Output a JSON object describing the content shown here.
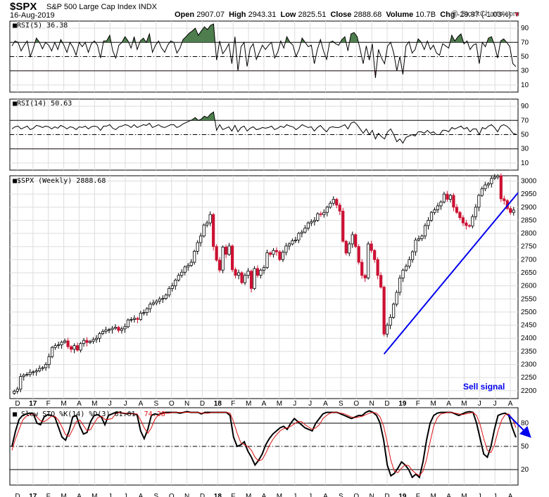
{
  "header": {
    "ticker": "$SPX",
    "company": "S&P 500 Large Cap Index",
    "exchange": "INDX",
    "date": "16-Aug-2019",
    "open_label": "Open",
    "open": "2907.07",
    "high_label": "High",
    "high": "2943.31",
    "low_label": "Low",
    "low": "2825.51",
    "close_label": "Close",
    "close": "2888.68",
    "volume_label": "Volume",
    "volume": "10.7B",
    "chg_label": "Chg",
    "chg": "-29.97 (-1.03%)",
    "brand": "@ StockCharts.com"
  },
  "colors": {
    "up": "#000000",
    "down": "#cc1133",
    "trendline": "#0000ee",
    "overbought_fill": "#4e7d4e",
    "oversold_fill": "#a04040",
    "stoch_d": "#dd1111"
  },
  "annotation": {
    "text": "Sell signal"
  },
  "x_axis": {
    "labels": [
      "D",
      "17",
      "F",
      "M",
      "A",
      "M",
      "J",
      "J",
      "A",
      "S",
      "O",
      "N",
      "D",
      "18",
      "F",
      "M",
      "A",
      "M",
      "J",
      "J",
      "A",
      "S",
      "O",
      "N",
      "D",
      "19",
      "F",
      "M",
      "A",
      "M",
      "J",
      "J",
      "A"
    ]
  },
  "chart_data": [
    {
      "type": "line",
      "name": "RSI(5)",
      "label": "RSI(5)",
      "value": "36.38",
      "ylim": [
        0,
        100
      ],
      "y_ticks": [
        "90",
        "70",
        "50",
        "30",
        "10"
      ],
      "reference_lines": [
        70,
        50,
        30
      ],
      "values": [
        65,
        72,
        70,
        58,
        66,
        72,
        50,
        62,
        76,
        70,
        61,
        70,
        66,
        58,
        70,
        60,
        74,
        66,
        56,
        70,
        63,
        52,
        70,
        64,
        70,
        56,
        68,
        72,
        66,
        48,
        72,
        72,
        80,
        58,
        48,
        66,
        70,
        78,
        72,
        62,
        78,
        60,
        72,
        76,
        70,
        82,
        56,
        66,
        72,
        62,
        56,
        66,
        72,
        70,
        55,
        62,
        74,
        78,
        83,
        86,
        90,
        80,
        86,
        92,
        88,
        94,
        96,
        45,
        72,
        54,
        60,
        68,
        40,
        78,
        30,
        64,
        70,
        36,
        62,
        68,
        46,
        56,
        66,
        60,
        66,
        70,
        48,
        56,
        72,
        62,
        78,
        70,
        66,
        50,
        60,
        76,
        70,
        64,
        66,
        40,
        60,
        74,
        58,
        46,
        70,
        72,
        68,
        66,
        74,
        78,
        58,
        82,
        84,
        78,
        60,
        40,
        65,
        45,
        68,
        20,
        60,
        48,
        40,
        65,
        70,
        55,
        30,
        50,
        25,
        65,
        71,
        55,
        60,
        75,
        70,
        60,
        72,
        60,
        66,
        55,
        52,
        68,
        65,
        62,
        80,
        72,
        78,
        82,
        68,
        72,
        60,
        66,
        68,
        40,
        70,
        64,
        76,
        78,
        66,
        48,
        72,
        75,
        70,
        64,
        40,
        36
      ]
    },
    {
      "type": "line",
      "name": "RSI(14)",
      "label": "RSI(14)",
      "value": "50.63",
      "ylim": [
        0,
        100
      ],
      "y_ticks": [
        "90",
        "70",
        "50",
        "30",
        "10"
      ],
      "reference_lines": [
        70,
        50,
        30
      ],
      "values": [
        58,
        61,
        62,
        58,
        60,
        62,
        57,
        59,
        63,
        62,
        60,
        62,
        61,
        58,
        61,
        59,
        63,
        61,
        58,
        61,
        60,
        57,
        61,
        60,
        62,
        58,
        61,
        62,
        61,
        56,
        62,
        62,
        64,
        59,
        57,
        61,
        62,
        64,
        63,
        60,
        64,
        60,
        62,
        64,
        63,
        66,
        60,
        62,
        64,
        61,
        60,
        62,
        64,
        64,
        60,
        62,
        65,
        67,
        69,
        71,
        74,
        70,
        72,
        76,
        74,
        79,
        82,
        56,
        64,
        57,
        59,
        61,
        55,
        63,
        54,
        60,
        62,
        55,
        59,
        61,
        57,
        58,
        60,
        59,
        60,
        62,
        57,
        59,
        62,
        60,
        64,
        62,
        61,
        57,
        60,
        64,
        62,
        60,
        61,
        55,
        60,
        63,
        58,
        54,
        60,
        61,
        60,
        60,
        62,
        64,
        58,
        66,
        68,
        64,
        58,
        52,
        58,
        50,
        56,
        44,
        52,
        47,
        44,
        54,
        58,
        50,
        40,
        44,
        38,
        46,
        48,
        50,
        48,
        54,
        54,
        52,
        56,
        52,
        54,
        50,
        50,
        56,
        56,
        54,
        60,
        58,
        60,
        62,
        58,
        60,
        54,
        58,
        58,
        50,
        60,
        58,
        62,
        64,
        60,
        54,
        62,
        64,
        62,
        58,
        52,
        50.63
      ]
    },
    {
      "type": "candlestick",
      "name": "$SPX (Weekly)",
      "label": "$SPX (Weekly)",
      "value": "2888.68",
      "ylim": [
        2170,
        3020
      ],
      "y_ticks": [
        "3000",
        "2950",
        "2900",
        "2850",
        "2800",
        "2750",
        "2700",
        "2650",
        "2600",
        "2550",
        "2500",
        "2450",
        "2400",
        "2350",
        "2300",
        "2250",
        "2200"
      ],
      "values": [
        2198,
        2206,
        2254,
        2260,
        2262,
        2270,
        2272,
        2276,
        2285,
        2288,
        2300,
        2330,
        2365,
        2372,
        2375,
        2385,
        2390,
        2368,
        2358,
        2372,
        2355,
        2380,
        2392,
        2384,
        2388,
        2395,
        2400,
        2418,
        2426,
        2432,
        2433,
        2438,
        2442,
        2430,
        2436,
        2444,
        2470,
        2472,
        2476,
        2472,
        2496,
        2498,
        2513,
        2530,
        2535,
        2542,
        2550,
        2552,
        2565,
        2590,
        2600,
        2622,
        2640,
        2652,
        2672,
        2678,
        2690,
        2732,
        2765,
        2790,
        2832,
        2840,
        2872,
        2750,
        2698,
        2660,
        2748,
        2720,
        2752,
        2662,
        2640,
        2650,
        2612,
        2640,
        2656,
        2590,
        2666,
        2640,
        2660,
        2670,
        2726,
        2720,
        2735,
        2730,
        2700,
        2728,
        2752,
        2760,
        2772,
        2775,
        2800,
        2805,
        2820,
        2840,
        2845,
        2850,
        2875,
        2872,
        2880,
        2900,
        2915,
        2930,
        2908,
        2885,
        2770,
        2725,
        2760,
        2795,
        2750,
        2690,
        2640,
        2630,
        2760,
        2735,
        2700,
        2640,
        2595,
        2416,
        2450,
        2480,
        2530,
        2575,
        2630,
        2660,
        2675,
        2700,
        2730,
        2775,
        2780,
        2790,
        2830,
        2850,
        2880,
        2890,
        2905,
        2920,
        2950,
        2930,
        2945,
        2900,
        2880,
        2860,
        2840,
        2830,
        2828,
        2864,
        2900,
        2945,
        2970,
        2985,
        2990,
        3010,
        3015,
        3020,
        2932,
        2925,
        2895,
        2880,
        2889
      ]
    },
    {
      "type": "line",
      "name": "Slow STO %K(14) %D(3)",
      "label": "Slow STO %K(14) %D(3)",
      "values_text": "61.61, 74.28",
      "ylim": [
        0,
        100
      ],
      "y_ticks": [
        "80",
        "50",
        "20"
      ],
      "reference_lines": [
        80,
        50,
        20
      ],
      "series": [
        {
          "name": "%K(14)",
          "values": [
            50,
            70,
            85,
            90,
            92,
            93,
            92,
            80,
            78,
            88,
            91,
            90,
            88,
            75,
            62,
            58,
            70,
            88,
            90,
            76,
            66,
            68,
            82,
            90,
            91,
            88,
            78,
            90,
            92,
            94,
            94,
            93,
            92,
            93,
            92,
            91,
            70,
            60,
            72,
            90,
            92,
            91,
            93,
            94,
            94,
            94,
            94,
            93,
            94,
            95,
            94,
            94,
            94,
            92,
            94,
            94,
            94,
            94,
            94,
            94,
            94,
            90,
            62,
            50,
            52,
            56,
            44,
            36,
            26,
            32,
            40,
            52,
            60,
            66,
            70,
            74,
            76,
            72,
            80,
            86,
            82,
            78,
            74,
            72,
            70,
            80,
            86,
            92,
            94,
            94,
            94,
            94,
            92,
            90,
            88,
            86,
            88,
            90,
            90,
            94,
            96,
            94,
            90,
            80,
            58,
            26,
            12,
            15,
            22,
            30,
            26,
            20,
            10,
            14,
            10,
            30,
            58,
            80,
            90,
            93,
            94,
            94,
            94,
            94,
            92,
            90,
            92,
            94,
            95,
            94,
            80,
            60,
            40,
            36,
            50,
            72,
            90,
            92,
            93,
            90,
            74,
            61.61
          ]
        },
        {
          "name": "%D(3)",
          "values": [
            45,
            60,
            72,
            84,
            89,
            91,
            92,
            88,
            83,
            82,
            85,
            89,
            89,
            84,
            75,
            65,
            63,
            72,
            82,
            84,
            77,
            70,
            72,
            80,
            87,
            89,
            85,
            85,
            86,
            92,
            94,
            93,
            93,
            92,
            92,
            92,
            84,
            74,
            67,
            74,
            85,
            91,
            92,
            93,
            93,
            94,
            94,
            94,
            94,
            94,
            94,
            94,
            94,
            93,
            93,
            93,
            94,
            94,
            94,
            94,
            94,
            93,
            82,
            67,
            55,
            52,
            50,
            45,
            36,
            31,
            33,
            41,
            51,
            59,
            65,
            70,
            73,
            74,
            76,
            79,
            82,
            82,
            78,
            75,
            72,
            74,
            78,
            86,
            90,
            93,
            94,
            94,
            93,
            92,
            90,
            88,
            87,
            88,
            89,
            91,
            93,
            94,
            93,
            88,
            76,
            55,
            32,
            18,
            16,
            22,
            26,
            25,
            19,
            15,
            12,
            18,
            33,
            56,
            76,
            87,
            92,
            93,
            94,
            94,
            93,
            92,
            91,
            92,
            93,
            94,
            90,
            78,
            60,
            45,
            42,
            52,
            70,
            84,
            91,
            92,
            86,
            74.28
          ]
        }
      ]
    }
  ]
}
